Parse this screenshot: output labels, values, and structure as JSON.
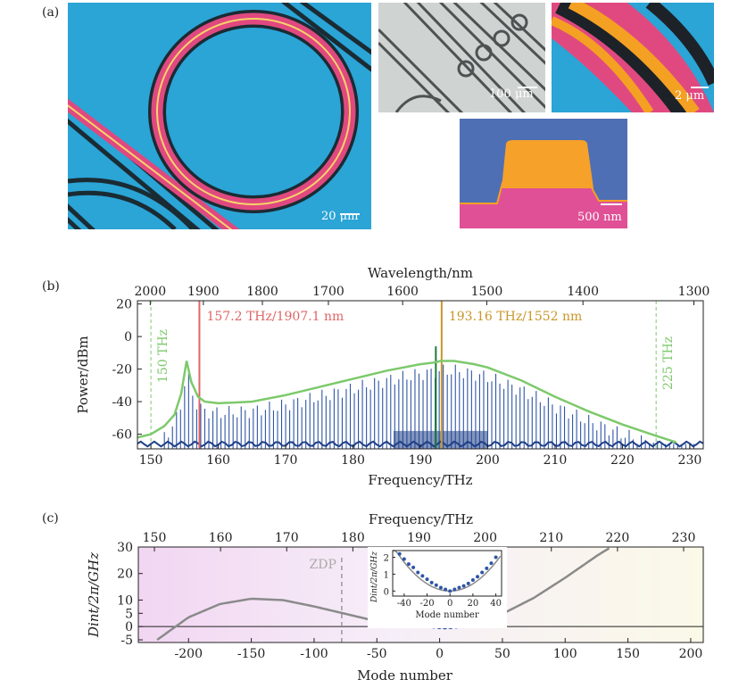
{
  "panel_labels": {
    "a": "(a)",
    "b": "(b)",
    "c": "(c)"
  },
  "images": [
    {
      "name": "ring-resonator-photo",
      "scale": "20 μm"
    },
    {
      "name": "ring-array-photo",
      "scale": "100 μm"
    },
    {
      "name": "waveguide-closeup-photo",
      "scale": "2 μm"
    },
    {
      "name": "waveguide-cross-section-photo",
      "scale": "500 nm"
    }
  ],
  "chart_data": [
    {
      "type": "line",
      "panel": "b",
      "xlabel": "Frequency/THz",
      "ylabel": "Power/dBm",
      "top_axis_label": "Wavelength/nm",
      "xlim": [
        148,
        232
      ],
      "ylim": [
        -69,
        22
      ],
      "x_ticks": [
        150,
        160,
        170,
        180,
        190,
        200,
        210,
        220,
        230
      ],
      "y_ticks": [
        20,
        0,
        -20,
        -40,
        -60
      ],
      "top_ticks_nm": [
        2000,
        1900,
        1800,
        1700,
        1600,
        1500,
        1400,
        1300
      ],
      "colors": {
        "spectrum": "#2f55a6",
        "envelope": "#7dc96b",
        "pump": "#d9a33b",
        "dispersive_wave": "#e06666"
      },
      "annotations": [
        {
          "text": "157.2 THz/1907.1 nm",
          "x": 157.2,
          "color": "#e06666"
        },
        {
          "text": "193.16 THz/1552 nm",
          "x": 193.16,
          "color": "#c9962a"
        },
        {
          "text": "150 THz",
          "x": 150,
          "color": "#7dc96b"
        },
        {
          "text": "225 THz",
          "x": 225,
          "color": "#7dc96b"
        }
      ],
      "envelope": {
        "x": [
          148,
          150,
          152,
          153.5,
          154.5,
          155.3,
          156,
          157,
          158,
          160,
          165,
          170,
          175,
          180,
          185,
          190,
          192,
          193,
          195,
          198,
          200,
          205,
          210,
          215,
          220,
          225,
          228
        ],
        "y": [
          -62,
          -60,
          -55,
          -48,
          -35,
          -15,
          -28,
          -37,
          -40,
          -41,
          -40,
          -36,
          -31,
          -26,
          -21,
          -17,
          -16,
          -15,
          -15,
          -17,
          -19,
          -27,
          -37,
          -46,
          -54,
          -61,
          -65
        ]
      },
      "line_spacing_thz": 0.6
    },
    {
      "type": "line",
      "panel": "c",
      "xlabel": "Mode number",
      "ylabel": "Dint/2π/GHz",
      "top_axis_label": "Frequency/THz",
      "xlim": [
        -240,
        210
      ],
      "ylim": [
        -6,
        30
      ],
      "x_ticks": [
        -200,
        -150,
        -100,
        -50,
        0,
        50,
        100,
        150,
        200
      ],
      "y_ticks": [
        30,
        20,
        10,
        5,
        0,
        -5
      ],
      "top_ticks_thz": [
        150,
        160,
        170,
        180,
        190,
        200,
        210,
        220,
        230
      ],
      "zdp_label": "ZDP",
      "zdp_mode": -78,
      "fit_curve": {
        "x": [
          -225,
          -200,
          -175,
          -150,
          -125,
          -100,
          -75,
          -50,
          -25,
          0,
          25,
          50,
          75,
          100,
          125,
          140
        ],
        "y": [
          -5,
          3.5,
          8.5,
          10.5,
          10,
          7.6,
          4.8,
          2.0,
          0.3,
          0,
          1.4,
          4.8,
          10.8,
          18.4,
          26.6,
          31
        ]
      },
      "measured_points": {
        "mode_range": [
          -45,
          40
        ],
        "y": [
          2.3,
          2.0,
          1.8,
          1.5,
          1.3,
          1.1,
          0.9,
          0.7,
          0.5,
          0.3,
          0.1,
          0.0,
          0.1,
          0.3,
          0.5,
          0.8,
          1.0,
          1.3,
          1.6,
          2.0
        ]
      },
      "inset": {
        "xlabel": "Mode number",
        "ylabel": "Dint/2π/GHz",
        "xlim": [
          -50,
          45
        ],
        "ylim": [
          -0.3,
          2.4
        ],
        "x_ticks": [
          -40,
          -20,
          0,
          20,
          40
        ],
        "y_ticks": [
          0,
          1,
          2
        ],
        "points_x": [
          -44,
          -40,
          -36,
          -32,
          -28,
          -24,
          -20,
          -16,
          -12,
          -8,
          -4,
          0,
          4,
          8,
          12,
          16,
          20,
          24,
          28,
          32,
          36,
          40
        ],
        "points_y": [
          2.2,
          1.9,
          1.6,
          1.4,
          1.1,
          0.9,
          0.7,
          0.5,
          0.35,
          0.2,
          0.1,
          0.0,
          0.1,
          0.2,
          0.3,
          0.45,
          0.65,
          0.85,
          1.1,
          1.35,
          1.65,
          2.0
        ]
      }
    }
  ]
}
